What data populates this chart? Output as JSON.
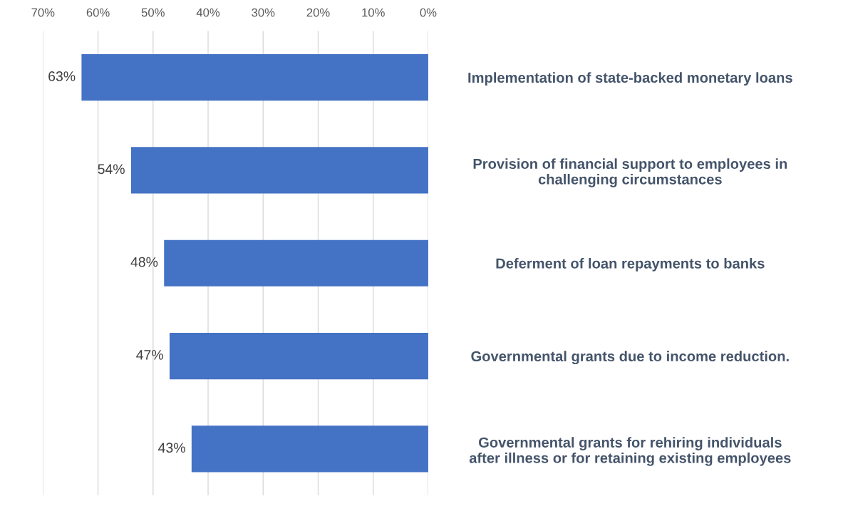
{
  "chart_data": {
    "type": "bar",
    "orientation": "horizontal",
    "categories": [
      "Implementation of state-backed monetary loans",
      "Provision of financial support to employees in\nchallenging circumstances",
      "Deferment of loan repayments to banks",
      "Governmental grants due to income reduction.",
      "Governmental grants for rehiring individuals\nafter illness or for retaining existing employees"
    ],
    "values": [
      63,
      54,
      48,
      47,
      43
    ],
    "value_labels": [
      "63%",
      "54%",
      "48%",
      "47%",
      "43%"
    ],
    "color": "#4472c4",
    "xlim": [
      70,
      0
    ],
    "xticks": [
      {
        "value": 70,
        "label": "70%"
      },
      {
        "value": 60,
        "label": "60%"
      },
      {
        "value": 50,
        "label": "50%"
      },
      {
        "value": 40,
        "label": "40%"
      },
      {
        "value": 30,
        "label": "30%"
      },
      {
        "value": 20,
        "label": "20%"
      },
      {
        "value": 10,
        "label": "10%"
      },
      {
        "value": 0,
        "label": "0%"
      }
    ],
    "grid": "x"
  }
}
